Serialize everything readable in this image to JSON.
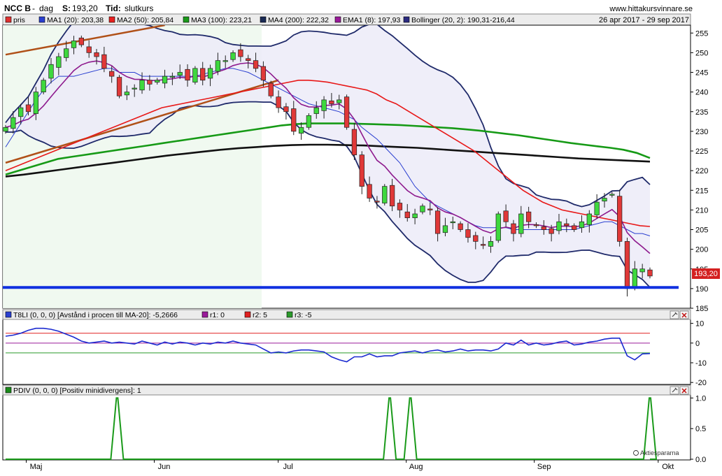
{
  "header": {
    "ticker": "NCC B",
    "period_sep": "-",
    "period": "dag",
    "s_label": "S:",
    "s_value": "193,20",
    "tid_label": "Tid:",
    "tid_value": "slutkurs",
    "site": "www.hittakursvinnare.se",
    "date_range": "26 apr 2017 - 29 sep 2017"
  },
  "legend": [
    {
      "label": "pris",
      "color": "#e03030"
    },
    {
      "label": "MA1 (20): 203,38",
      "color": "#2a3fd0"
    },
    {
      "label": "MA2 (50): 205,84",
      "color": "#e82020"
    },
    {
      "label": "MA3 (100): 223,21",
      "color": "#1a9a1a"
    },
    {
      "label": "MA4 (200): 222,32",
      "color": "#1a2a55"
    },
    {
      "label": "EMA1 (8): 197,93",
      "color": "#9a1a9a"
    },
    {
      "label": "Bollinger (20, 2): 190,31-216,44",
      "color": "#2a2a80"
    }
  ],
  "price_tag": "193,20",
  "panel2": {
    "title": "T8LI (0, 0, 0) [Avstånd i procen till MA-20]: -5,2666",
    "r1": "r1: 0",
    "r2": "r2: 5",
    "r3": "r3: -5"
  },
  "panel3": {
    "title": "PDIV (0, 0, 0) [Positiv minidivergens]: 1"
  },
  "watermark": "Aktiespararna",
  "chart_data": {
    "type": "candlestick",
    "x_range": [
      "2017-04-26",
      "2017-09-29"
    ],
    "x_ticks": [
      "Maj",
      "Jun",
      "Jul",
      "Aug",
      "Sep",
      "Okt"
    ],
    "price_axis": {
      "ylim": [
        185,
        257
      ],
      "ticks": [
        185,
        190,
        195,
        200,
        205,
        210,
        215,
        220,
        225,
        230,
        235,
        240,
        245,
        250,
        255
      ]
    },
    "support_level": 190.3,
    "close_series": [
      231,
      233.5,
      236,
      235,
      240,
      243,
      247,
      249,
      251,
      253,
      252,
      250,
      249,
      246,
      244,
      239,
      240,
      241,
      243,
      242,
      243,
      244,
      244,
      245,
      243,
      246,
      243,
      246,
      248,
      248,
      250,
      249,
      248,
      246,
      243,
      239,
      236,
      235,
      230,
      231,
      234,
      236,
      238,
      237,
      238,
      231,
      224,
      216,
      213,
      212,
      216,
      211,
      210,
      208,
      209,
      211,
      210,
      204,
      206,
      207,
      205,
      203,
      202,
      201,
      202,
      209,
      207,
      204,
      209,
      207,
      206,
      205,
      204,
      207,
      206,
      205,
      207,
      209,
      212,
      213,
      214,
      202,
      190,
      195,
      195,
      193.2
    ],
    "ma20": [
      226,
      229,
      232,
      235,
      238,
      240.5,
      242.5,
      244,
      244,
      244,
      244.5,
      245,
      245.5,
      246,
      246,
      245,
      245,
      245,
      244,
      244,
      244,
      244,
      244,
      244,
      244,
      244,
      244.5,
      245,
      245.5,
      246,
      246,
      245.5,
      245,
      244,
      243,
      242,
      241,
      240,
      239,
      238,
      237,
      236.5,
      236,
      235.5,
      235,
      234,
      233,
      231,
      229.5,
      228,
      226,
      224,
      222,
      219,
      216,
      214,
      212,
      211,
      210,
      209,
      208,
      207,
      206,
      205.5,
      205.5,
      205.5,
      205.5,
      205,
      205,
      205,
      205,
      205,
      205,
      205,
      205,
      205,
      205.5,
      206,
      206.5,
      207,
      207,
      206,
      205,
      204,
      204,
      203.4
    ],
    "ma50": [
      220,
      221,
      222,
      223,
      224,
      225,
      226,
      227,
      228,
      229,
      230,
      231,
      232,
      233,
      234,
      235,
      236,
      236.5,
      237,
      237.5,
      238,
      238.5,
      239,
      239.5,
      240,
      240.5,
      241,
      241.5,
      242,
      242.5,
      243,
      243,
      242.8,
      242.5,
      242,
      241.5,
      241,
      240.5,
      239.5,
      238,
      237,
      235.5,
      234,
      232.5,
      231,
      229.5,
      228,
      226.5,
      225,
      223,
      221,
      219,
      217,
      215,
      213.5,
      212,
      211,
      210,
      209.5,
      209,
      208.5,
      208,
      207.5,
      207,
      206.5,
      206,
      205.8
    ],
    "ma100": [
      219,
      220,
      221,
      222,
      223,
      223.5,
      224,
      224.5,
      225,
      225.5,
      226,
      226.5,
      227,
      227.5,
      228,
      228.5,
      229,
      229.5,
      230,
      230.5,
      231,
      231.5,
      231.8,
      232,
      232,
      232,
      232,
      231.9,
      231.8,
      231.7,
      231.6,
      231.4,
      231.2,
      231,
      230.8,
      230.5,
      230.2,
      229.8,
      229.4,
      229,
      228.5,
      228,
      227.5,
      227,
      226.6,
      226.2,
      225.8,
      225.3,
      224.5,
      223.2
    ],
    "ma200": [
      218.5,
      219,
      219.6,
      220.2,
      220.8,
      221.4,
      222,
      222.6,
      223.2,
      223.8,
      224.3,
      224.8,
      225.3,
      225.7,
      226,
      226.3,
      226.5,
      226.6,
      226.6,
      226.5,
      226.4,
      226.2,
      226,
      225.8,
      225.5,
      225.2,
      224.9,
      224.6,
      224.3,
      224,
      223.7,
      223.4,
      223.1,
      222.9,
      222.7,
      222.5,
      222.3
    ],
    "bollinger": {
      "upper_end": 216.44,
      "lower_end": 190.31
    },
    "oscillator": {
      "name": "T8LI",
      "ylim": [
        -21,
        12
      ],
      "ticks": [
        -20,
        -10,
        0,
        10
      ],
      "lines": {
        "r1": 0,
        "r2": 5,
        "r3": -5
      },
      "values": [
        3.5,
        4,
        5,
        6.5,
        7.5,
        7.5,
        7,
        6,
        4.5,
        3,
        1,
        0,
        0.5,
        1,
        0,
        0.5,
        0,
        -0.5,
        1,
        0,
        -1,
        0.5,
        -0.5,
        0.5,
        0,
        -1,
        0,
        -0.5,
        0.5,
        0,
        1,
        0,
        -0.5,
        -1,
        -3,
        -5,
        -4.5,
        -5,
        -4,
        -3.5,
        -3.5,
        -4,
        -4.5,
        -7,
        -8.5,
        -9.5,
        -7,
        -7,
        -5.5,
        -7,
        -6.5,
        -6.5,
        -5,
        -4.5,
        -4,
        -5,
        -4,
        -3.5,
        -4.5,
        -4,
        -3,
        -4,
        -3.5,
        -3.5,
        -4,
        -3,
        0,
        -1,
        1.5,
        -1,
        0,
        -1,
        -0.5,
        0.5,
        1,
        -1,
        -0.5,
        0.5,
        1,
        2,
        2.5,
        2.5,
        -6.5,
        -8.5,
        -5.5,
        -5.3
      ]
    },
    "pdiv": {
      "name": "PDIV",
      "ylim": [
        0,
        1.05
      ],
      "ticks": [
        0,
        0.5,
        1.0
      ],
      "spikes": [
        {
          "x": "2017-05-23",
          "value": 1
        },
        {
          "x": "2017-07-28",
          "value": 1
        },
        {
          "x": "2017-08-02",
          "value": 1
        },
        {
          "x": "2017-09-29",
          "value": 1
        }
      ]
    }
  }
}
